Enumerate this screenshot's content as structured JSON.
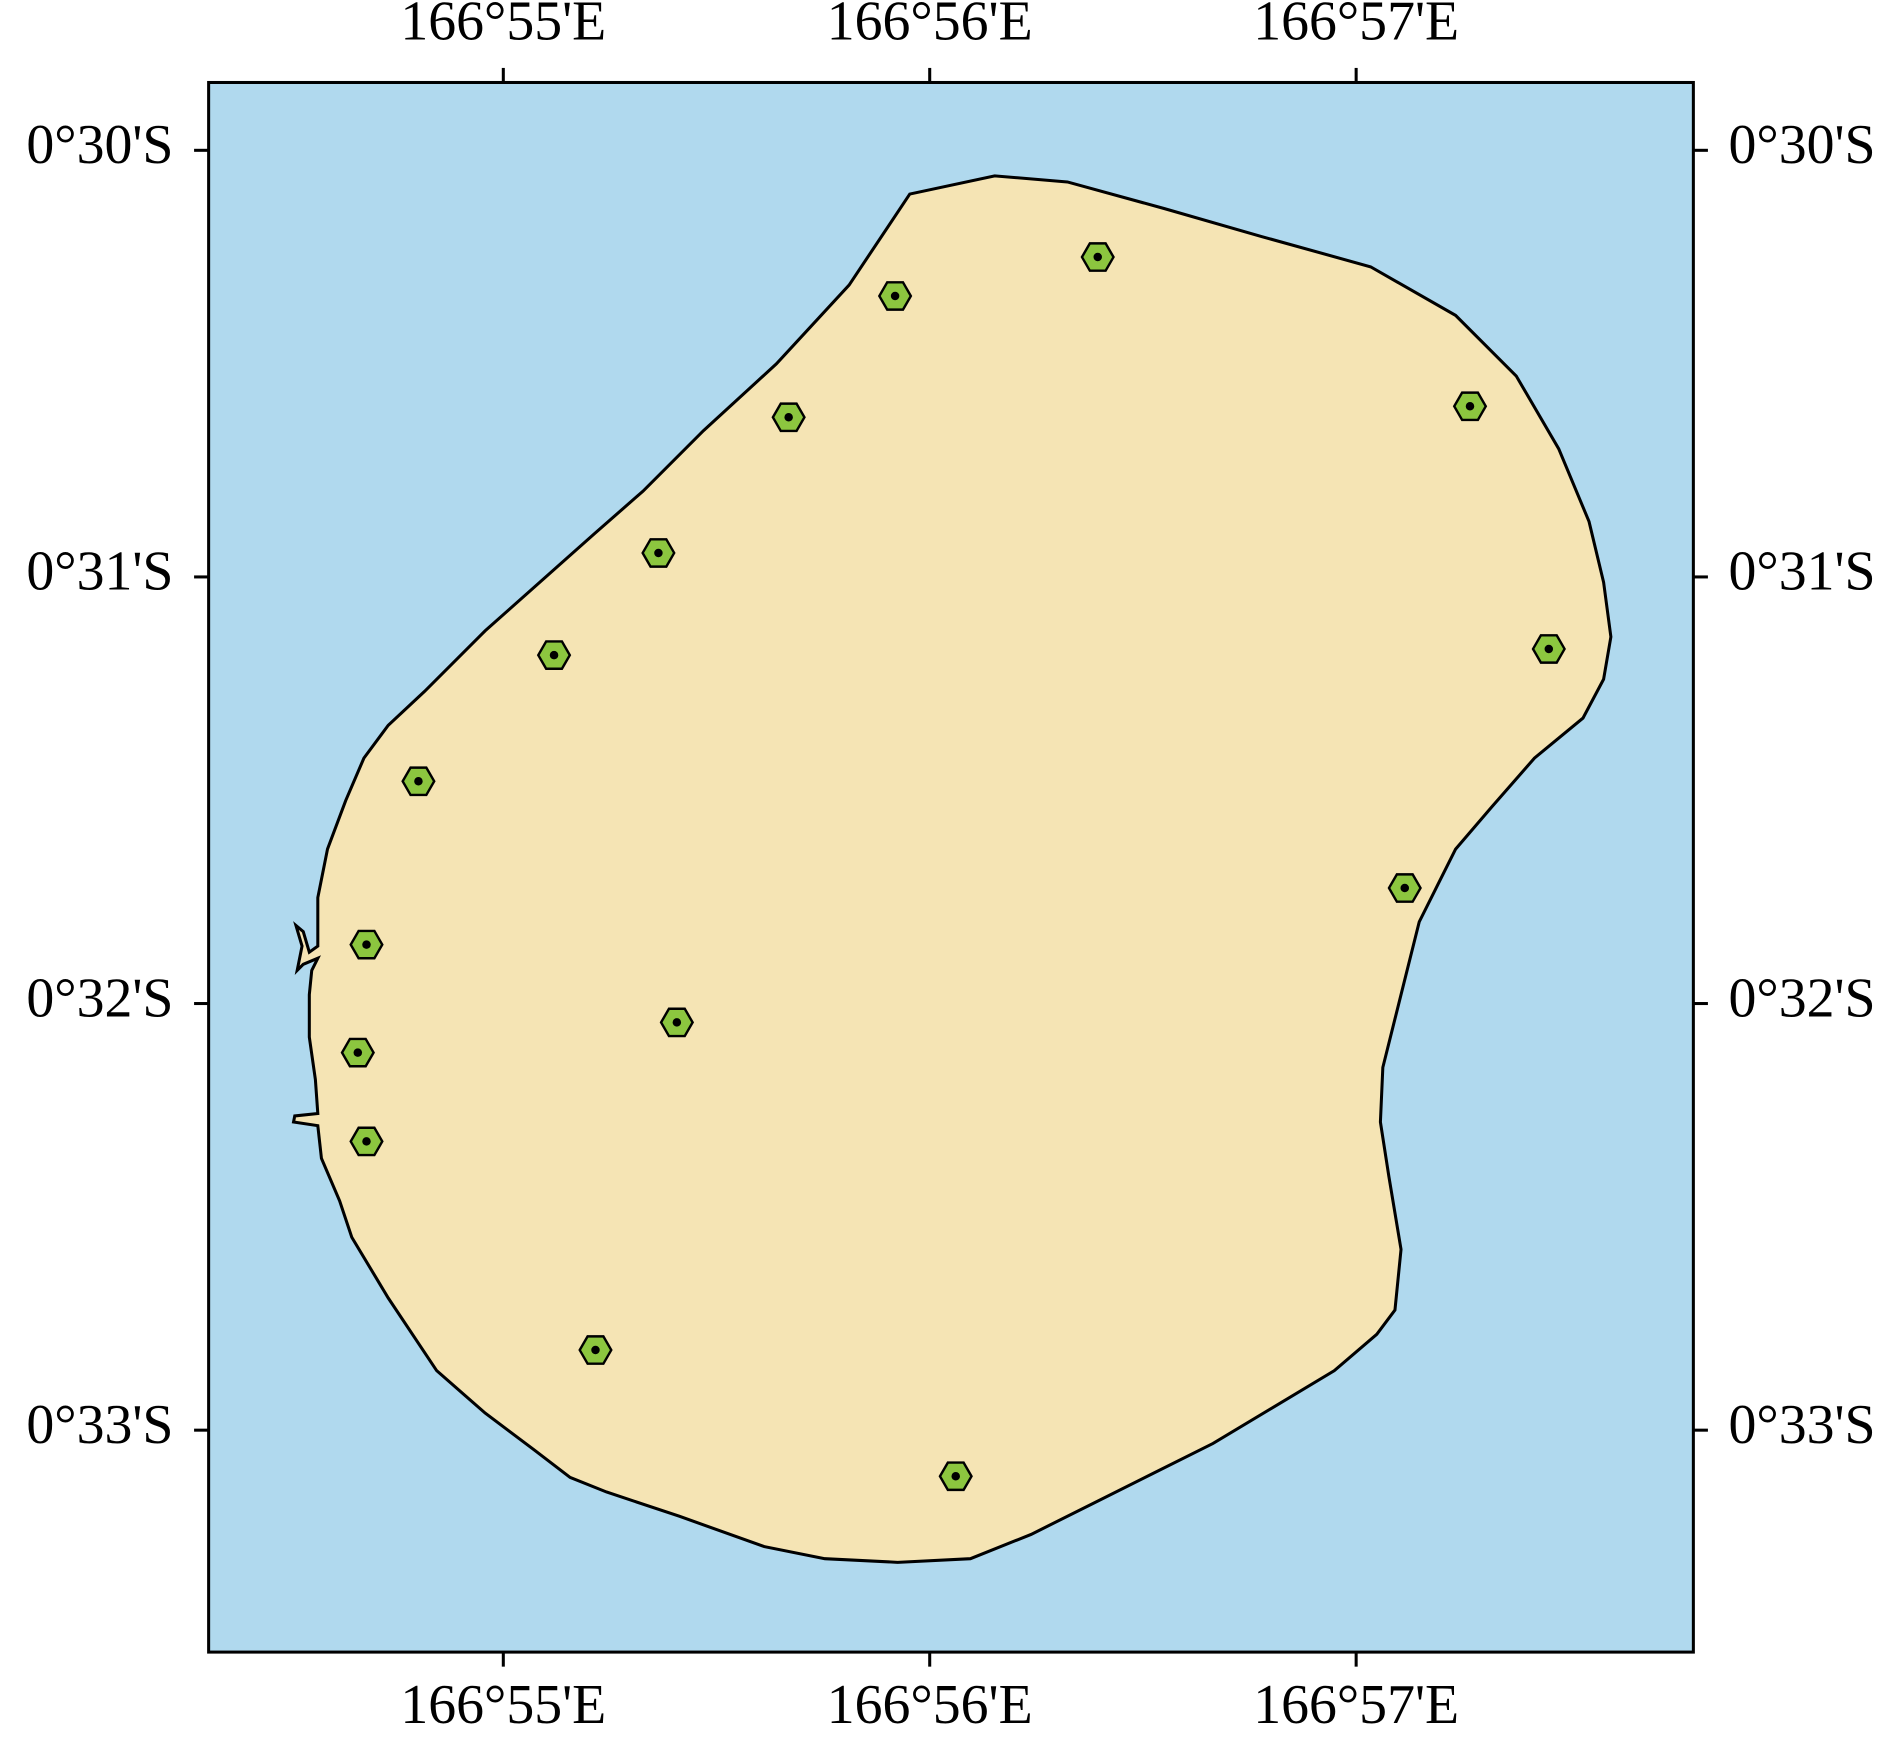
{
  "chart_data": {
    "type": "map",
    "xlim": [
      166.90515,
      166.96318
    ],
    "ylim": [
      -0.55867,
      -0.49735
    ],
    "xticks": [
      {
        "value": 166.916667,
        "label": "166°55'E"
      },
      {
        "value": 166.933333,
        "label": "166°56'E"
      },
      {
        "value": 166.95,
        "label": "166°57'E"
      }
    ],
    "yticks": [
      {
        "value": -0.5,
        "label": "0°30'S"
      },
      {
        "value": -0.516667,
        "label": "0°31'S"
      },
      {
        "value": -0.533333,
        "label": "0°32'S"
      },
      {
        "value": -0.55,
        "label": "0°33'S"
      }
    ],
    "x": [
      166.9399,
      166.93198,
      166.92782,
      166.95445,
      166.92273,
      166.91865,
      166.95753,
      166.91335,
      166.9519,
      166.91132,
      166.92345,
      166.91098,
      166.91132,
      166.92027,
      166.93435
    ],
    "values": [
      -0.50417,
      -0.50569,
      -0.51043,
      -0.51,
      -0.51573,
      -0.51972,
      -0.51948,
      -0.52465,
      -0.52882,
      -0.53103,
      -0.53407,
      -0.53525,
      -0.53872,
      -0.54687,
      -0.5518
    ],
    "color": "#8cc63f",
    "sea_color": "#b0d9ee",
    "land_color": "#f5e4b4"
  }
}
